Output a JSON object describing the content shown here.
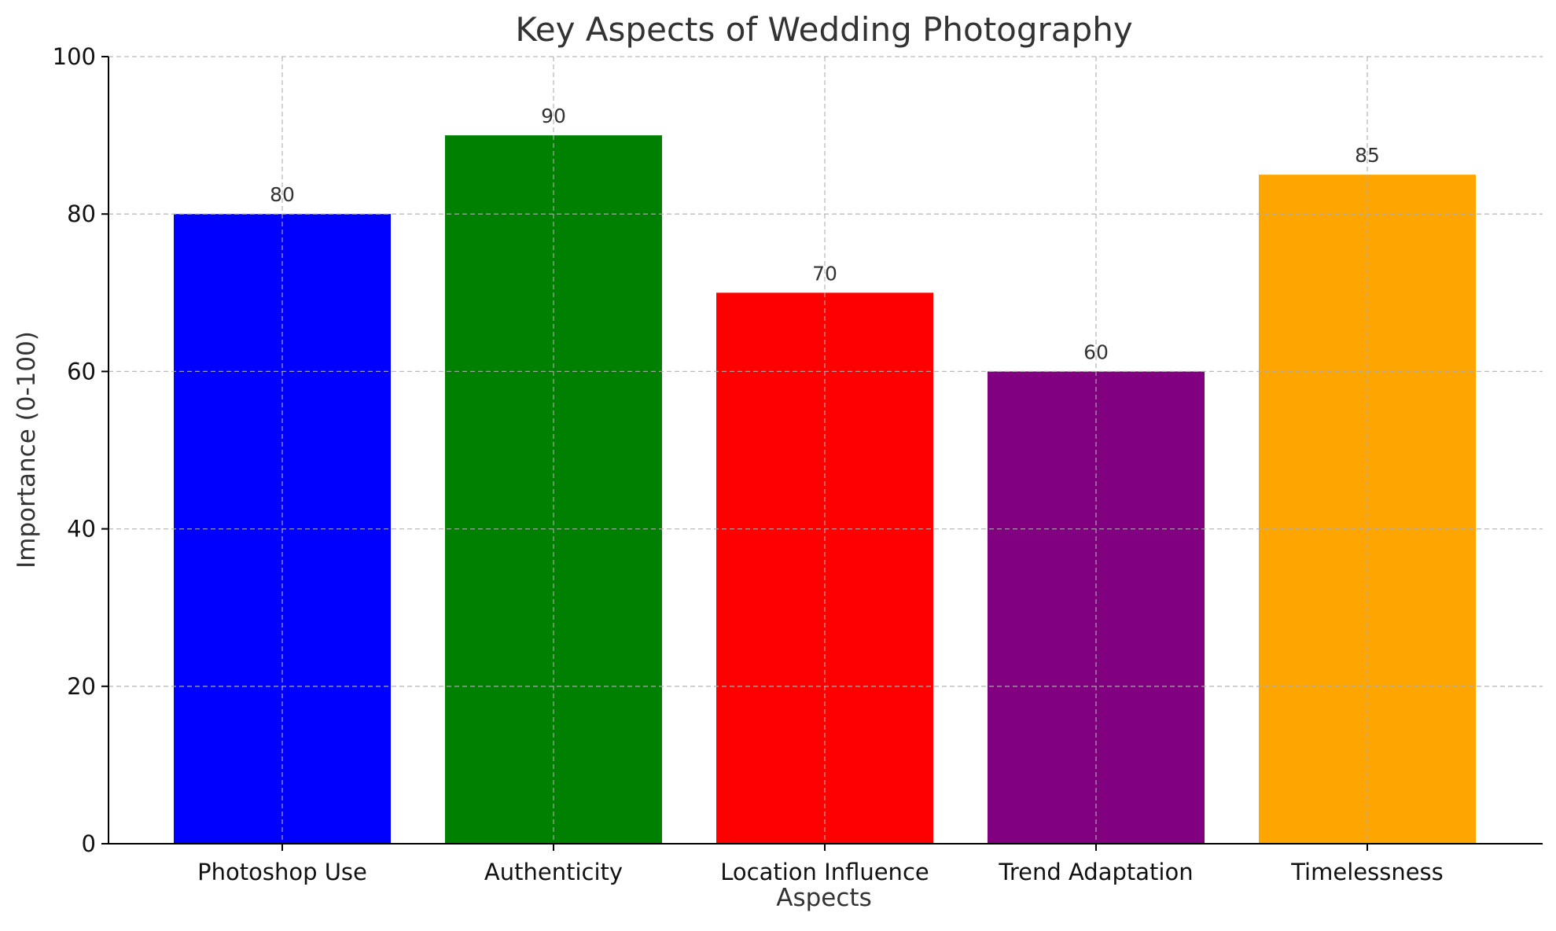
{
  "chart_data": {
    "type": "bar",
    "title": "Key Aspects of Wedding Photography",
    "xlabel": "Aspects",
    "ylabel": "Importance (0-100)",
    "categories": [
      "Photoshop Use",
      "Authenticity",
      "Location Influence",
      "Trend Adaptation",
      "Timelessness"
    ],
    "values": [
      80,
      90,
      70,
      60,
      85
    ],
    "data_labels": [
      "80",
      "90",
      "70",
      "60",
      "85"
    ],
    "colors": [
      "#0000ff",
      "#008000",
      "#ff0000",
      "#800080",
      "#ffa500"
    ],
    "ylim": [
      0,
      100
    ],
    "yticks": [
      0,
      20,
      40,
      60,
      80,
      100
    ],
    "ytick_labels": [
      "0",
      "20",
      "40",
      "60",
      "80",
      "100"
    ],
    "grid": true,
    "legend": "none"
  }
}
